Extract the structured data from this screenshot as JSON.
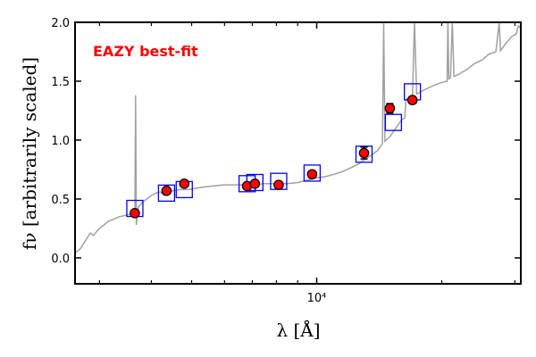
{
  "chart_data": {
    "type": "scatter",
    "x_scale": "log",
    "xlim": [
      2620,
      31000
    ],
    "ylim": [
      -0.22,
      2.0
    ],
    "xticks": [
      {
        "value": 10000,
        "label": "10⁴"
      }
    ],
    "yticks": [
      {
        "value": 0.0,
        "label": "0.0"
      },
      {
        "value": 0.5,
        "label": "0.5"
      },
      {
        "value": 1.0,
        "label": "1.0"
      },
      {
        "value": 1.5,
        "label": "1.5"
      },
      {
        "value": 2.0,
        "label": "2.0"
      }
    ],
    "xlabel": "λ [Å]",
    "ylabel": "fν [arbitrarily scaled]",
    "annotation": "EAZY best-fit",
    "colors": {
      "annotation": "#ff0000",
      "template": "#a0a0a0",
      "model_box": "#0000ff",
      "observed_fill": "#ff0000",
      "observed_edge": "#000000"
    },
    "series": [
      {
        "kind": "template-line",
        "points": [
          [
            2620,
            0.04
          ],
          [
            2700,
            0.08
          ],
          [
            2780,
            0.15
          ],
          [
            2850,
            0.21
          ],
          [
            2900,
            0.19
          ],
          [
            2980,
            0.24
          ],
          [
            3050,
            0.27
          ],
          [
            3150,
            0.31
          ],
          [
            3250,
            0.33
          ],
          [
            3350,
            0.35
          ],
          [
            3450,
            0.36
          ],
          [
            3550,
            0.37
          ],
          [
            3620,
            0.37
          ],
          [
            3650,
            0.34
          ],
          [
            3665,
            1.38
          ],
          [
            3680,
            0.28
          ],
          [
            3720,
            0.43
          ],
          [
            3800,
            0.47
          ],
          [
            3900,
            0.5
          ],
          [
            4000,
            0.53
          ],
          [
            4100,
            0.55
          ],
          [
            4200,
            0.56
          ],
          [
            4300,
            0.53
          ],
          [
            4400,
            0.55
          ],
          [
            4500,
            0.57
          ],
          [
            4700,
            0.58
          ],
          [
            4900,
            0.58
          ],
          [
            5100,
            0.59
          ],
          [
            5300,
            0.6
          ],
          [
            5600,
            0.61
          ],
          [
            6000,
            0.62
          ],
          [
            6500,
            0.62
          ],
          [
            7000,
            0.62
          ],
          [
            7500,
            0.63
          ],
          [
            8000,
            0.63
          ],
          [
            8500,
            0.63
          ],
          [
            9000,
            0.64
          ],
          [
            9500,
            0.66
          ],
          [
            10000,
            0.68
          ],
          [
            10500,
            0.69
          ],
          [
            11000,
            0.71
          ],
          [
            11500,
            0.73
          ],
          [
            12000,
            0.76
          ],
          [
            12500,
            0.79
          ],
          [
            13000,
            0.83
          ],
          [
            13500,
            0.87
          ],
          [
            14000,
            0.91
          ],
          [
            14400,
            0.97
          ],
          [
            14500,
            2.0
          ],
          [
            14600,
            0.99
          ],
          [
            15000,
            1.03
          ],
          [
            15500,
            1.1
          ],
          [
            16000,
            1.17
          ],
          [
            16300,
            1.19
          ],
          [
            16400,
            1.34
          ],
          [
            16500,
            1.35
          ],
          [
            16800,
            1.36
          ],
          [
            17000,
            1.37
          ],
          [
            17200,
            2.0
          ],
          [
            17400,
            1.39
          ],
          [
            18000,
            1.42
          ],
          [
            19000,
            1.46
          ],
          [
            20000,
            1.49
          ],
          [
            20600,
            1.5
          ],
          [
            20700,
            2.0
          ],
          [
            20800,
            1.52
          ],
          [
            21000,
            1.53
          ],
          [
            21200,
            2.0
          ],
          [
            21400,
            1.54
          ],
          [
            22000,
            1.56
          ],
          [
            23000,
            1.6
          ],
          [
            24000,
            1.65
          ],
          [
            25000,
            1.68
          ],
          [
            26000,
            1.73
          ],
          [
            27000,
            1.75
          ],
          [
            27500,
            2.0
          ],
          [
            27700,
            1.76
          ],
          [
            28500,
            1.82
          ],
          [
            29500,
            1.88
          ],
          [
            30200,
            1.9
          ],
          [
            30600,
            1.97
          ],
          [
            31000,
            1.95
          ]
        ]
      },
      {
        "kind": "model-boxes",
        "points": [
          [
            3650,
            0.42
          ],
          [
            4350,
            0.55
          ],
          [
            4800,
            0.58
          ],
          [
            6800,
            0.63
          ],
          [
            7100,
            0.64
          ],
          [
            8100,
            0.65
          ],
          [
            9750,
            0.72
          ],
          [
            13000,
            0.88
          ],
          [
            15300,
            1.15
          ],
          [
            17000,
            1.41
          ]
        ]
      },
      {
        "kind": "observed-points",
        "points": [
          [
            3650,
            0.38,
            0.02
          ],
          [
            4350,
            0.57,
            0.02
          ],
          [
            4800,
            0.63,
            0.02
          ],
          [
            6800,
            0.61,
            0.02
          ],
          [
            7100,
            0.63,
            0.02
          ],
          [
            8100,
            0.62,
            0.02
          ],
          [
            9750,
            0.71,
            0.02
          ],
          [
            13000,
            0.89,
            0.05
          ],
          [
            15000,
            1.27,
            0.04
          ],
          [
            17000,
            1.34,
            0.03
          ]
        ]
      }
    ]
  }
}
